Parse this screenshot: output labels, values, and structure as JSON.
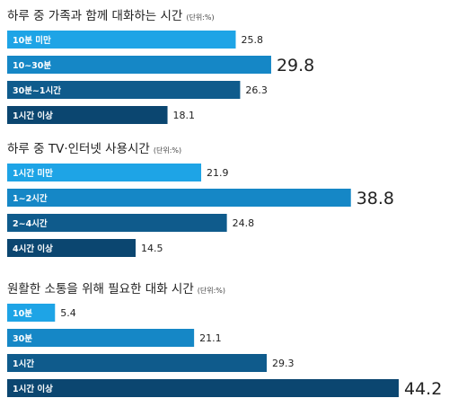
{
  "unit": "단위:%",
  "colors": {
    "light": "#1ea4e6",
    "mid": "#1587c6",
    "dark": "#0f5b8c",
    "darker": "#0b4670",
    "title": "#222222"
  },
  "chart_data": [
    {
      "type": "bar",
      "title": "하루 중 가족과 함께 대화하는 시간",
      "unit": "단위:%",
      "categories": [
        "10분 미만",
        "10~30분",
        "30분~1시간",
        "1시간 이상"
      ],
      "values": [
        25.8,
        29.8,
        26.3,
        18.1
      ],
      "value_labels": [
        "25.8",
        "29.8",
        "26.3",
        "18.1"
      ],
      "xlim": [
        0,
        44.2
      ]
    },
    {
      "type": "bar",
      "title": "하루 중 TV·인터넷 사용시간",
      "unit": "단위:%",
      "categories": [
        "1시간 미만",
        "1~2시간",
        "2~4시간",
        "4시간 이상"
      ],
      "values": [
        21.9,
        38.8,
        24.8,
        14.5
      ],
      "value_labels": [
        "21.9",
        "38.8",
        "24.8",
        "14.5"
      ],
      "xlim": [
        0,
        44.2
      ]
    },
    {
      "type": "bar",
      "title": "원활한 소통을 위해 필요한 대화 시간",
      "unit": "단위:%",
      "categories": [
        "10분",
        "30분",
        "1시간",
        "1시간 이상"
      ],
      "values": [
        5.4,
        21.1,
        29.3,
        44.2
      ],
      "value_labels": [
        "5.4",
        "21.1",
        "29.3",
        "44.2"
      ],
      "xlim": [
        0,
        44.2
      ]
    }
  ]
}
